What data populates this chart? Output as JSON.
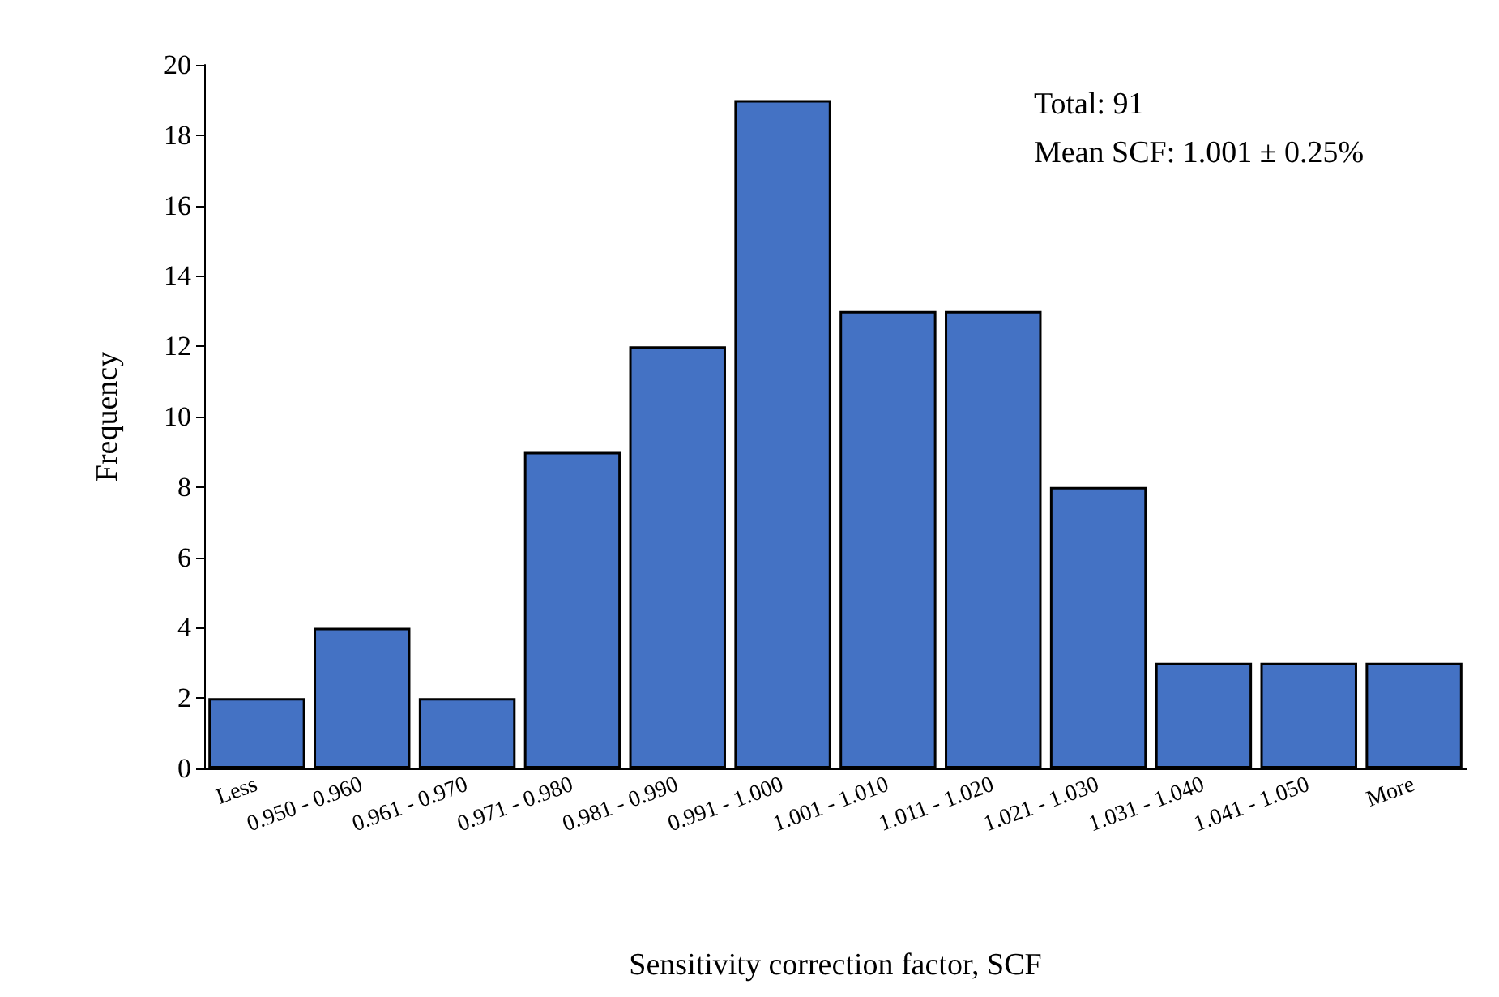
{
  "chart_data": {
    "type": "bar",
    "xlabel": "Sensitivity correction factor, SCF",
    "ylabel": "Frequency",
    "categories": [
      "Less",
      "0.950 - 0.960",
      "0.961 - 0.970",
      "0.971 - 0.980",
      "0.981 - 0.990",
      "0.991 - 1.000",
      "1.001 - 1.010",
      "1.011 - 1.020",
      "1.021 - 1.030",
      "1.031 - 1.040",
      "1.041 - 1.050",
      "More"
    ],
    "values": [
      2,
      4,
      2,
      9,
      12,
      19,
      13,
      13,
      8,
      3,
      3,
      3
    ],
    "color": "#4472c4",
    "ylim": [
      0,
      20
    ],
    "yticks": [
      0,
      2,
      4,
      6,
      8,
      10,
      12,
      14,
      16,
      18,
      20
    ],
    "grid": false,
    "annotations": [
      "Total: 91",
      "Mean SCF: 1.001 ± 0.25%"
    ]
  }
}
